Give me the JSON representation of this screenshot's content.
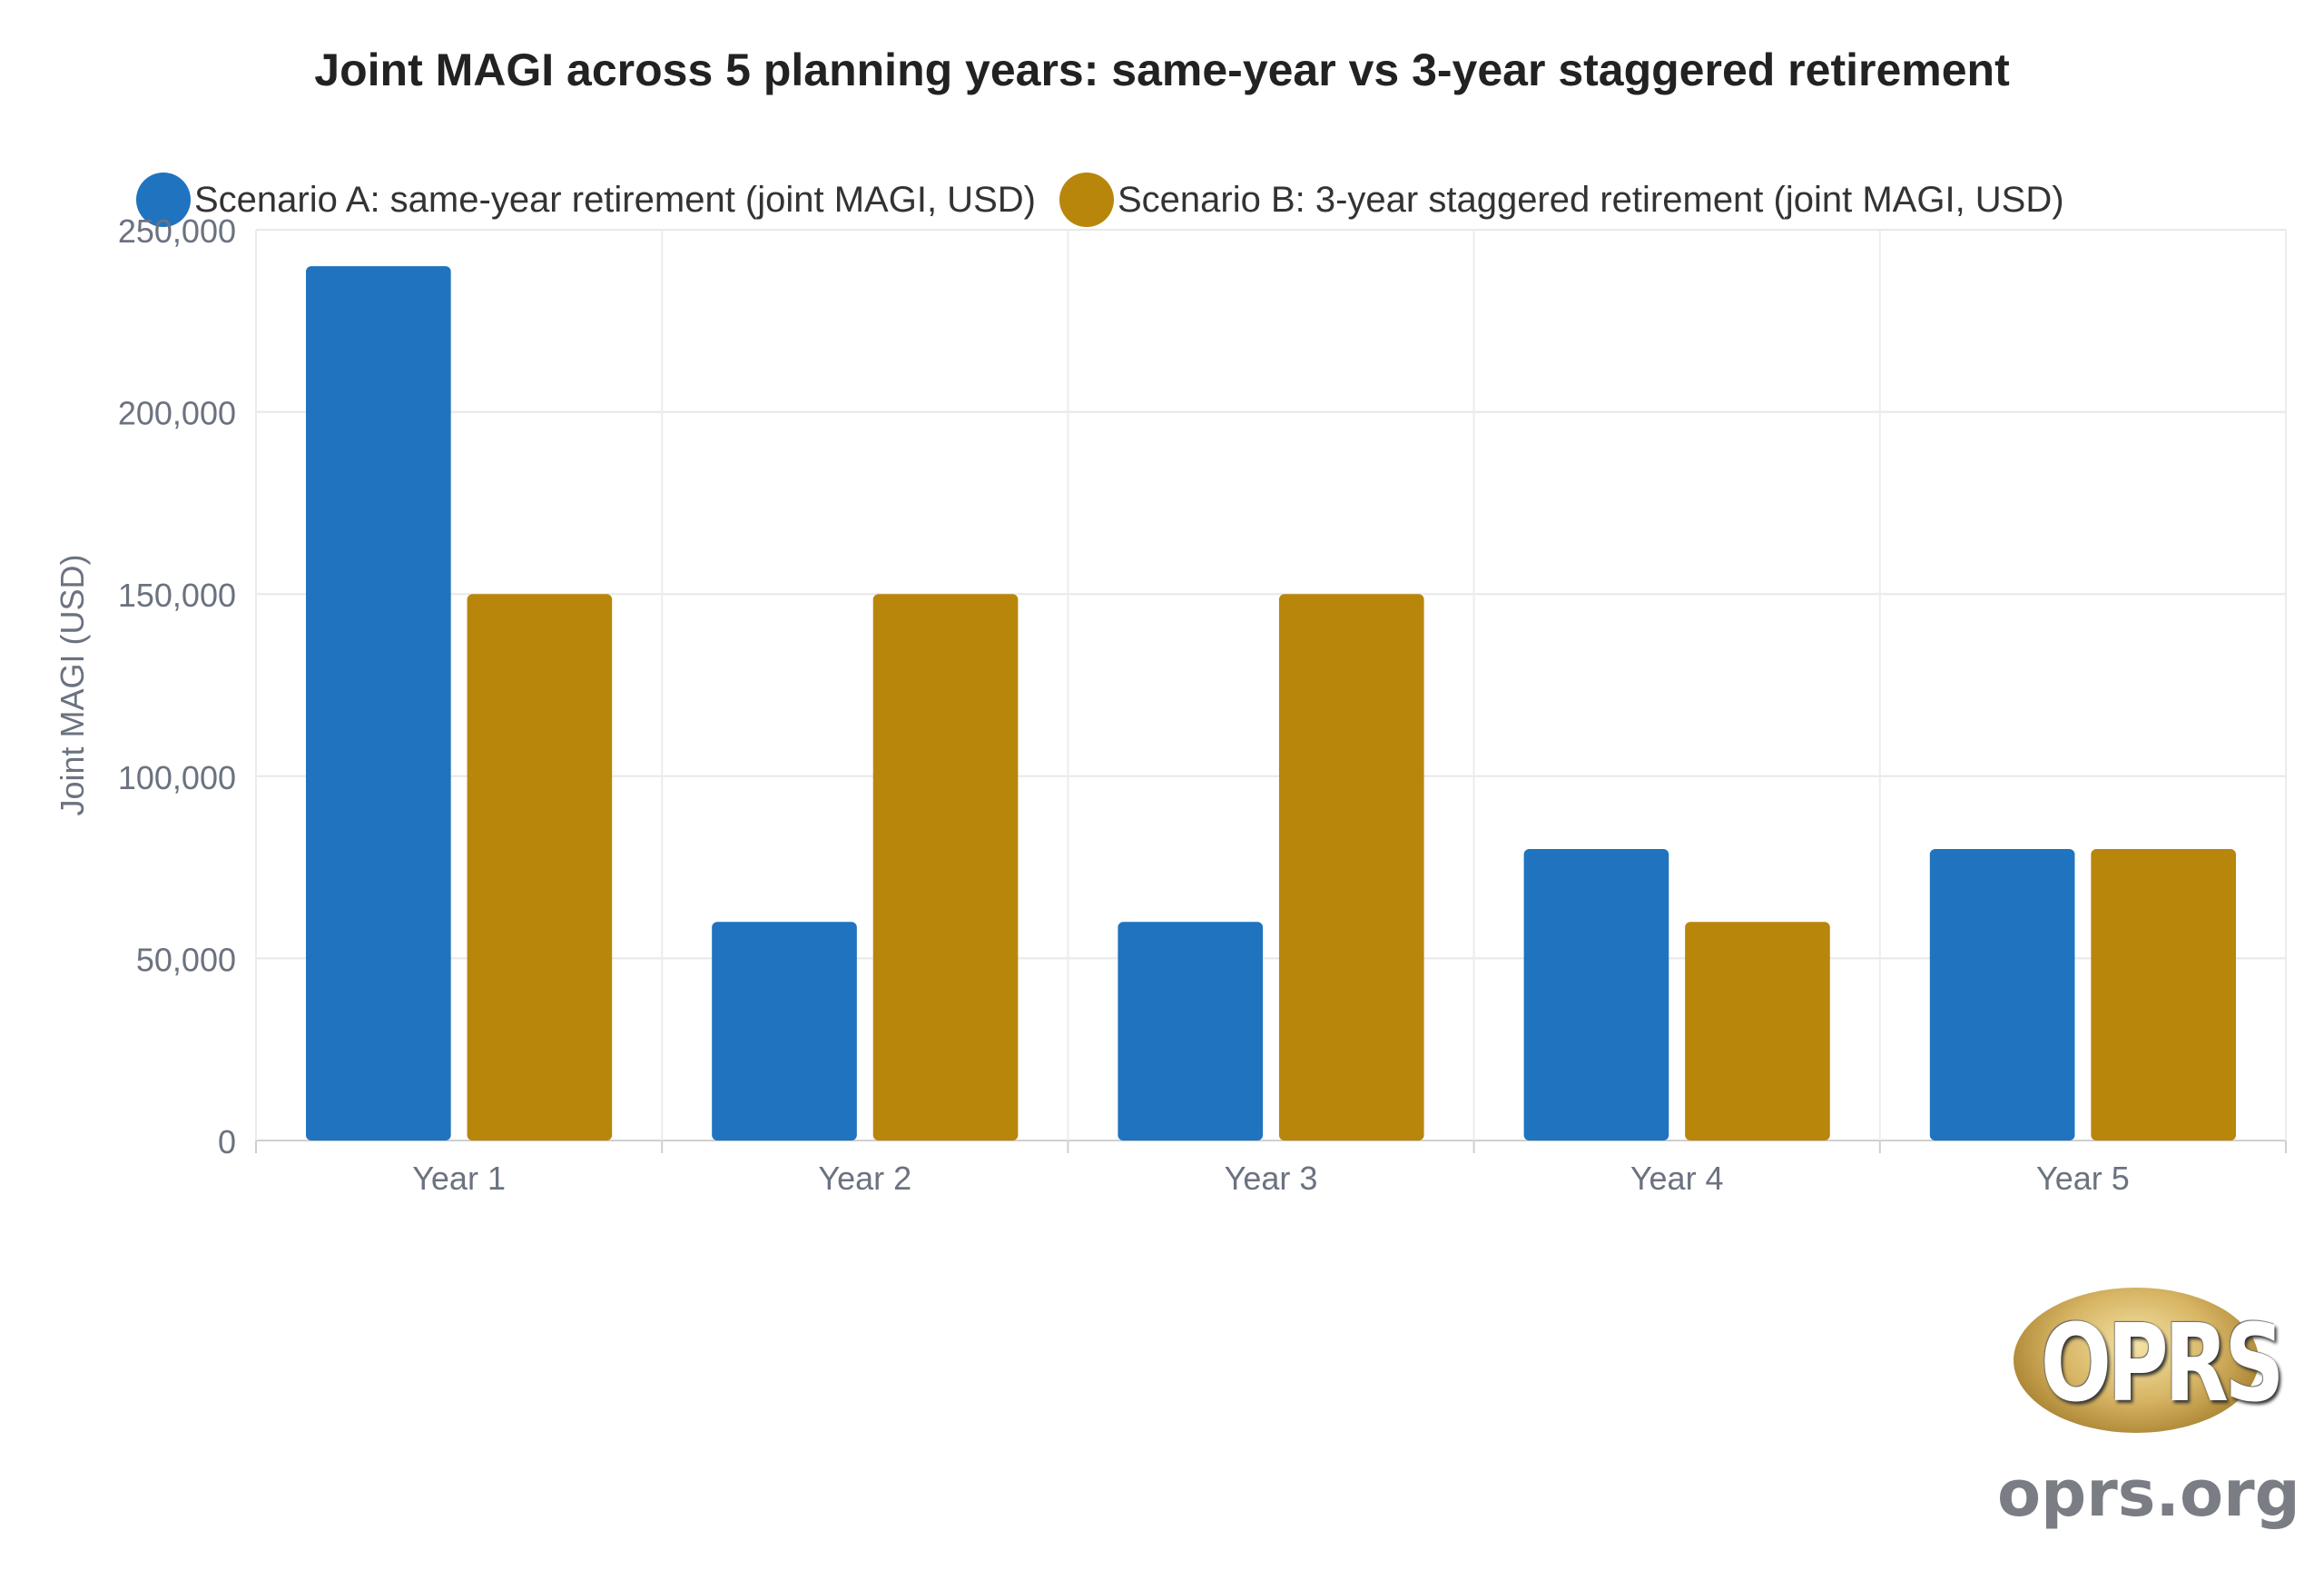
{
  "chart_data": {
    "type": "bar",
    "title": "Joint MAGI across 5 planning years: same-year vs 3-year staggered retirement",
    "xlabel": "",
    "ylabel": "Joint MAGI (USD)",
    "categories": [
      "Year 1",
      "Year 2",
      "Year 3",
      "Year 4",
      "Year 5"
    ],
    "ylim": [
      0,
      250000
    ],
    "yticks": [
      0,
      50000,
      100000,
      150000,
      200000,
      250000
    ],
    "ytick_labels": [
      "0",
      "50,000",
      "100,000",
      "150,000",
      "200,000",
      "250,000"
    ],
    "grid": true,
    "legend_position": "top",
    "series": [
      {
        "name": "Scenario A: same-year retirement (joint MAGI, USD)",
        "values": [
          240000,
          60000,
          60000,
          80000,
          80000
        ],
        "color": "#1f73bf"
      },
      {
        "name": "Scenario B: 3-year staggered retirement (joint MAGI, USD)",
        "values": [
          150000,
          150000,
          150000,
          60000,
          80000
        ],
        "color": "#b8860b"
      }
    ]
  },
  "branding": {
    "logo_text": "OPRS",
    "url": "oprs.org"
  }
}
